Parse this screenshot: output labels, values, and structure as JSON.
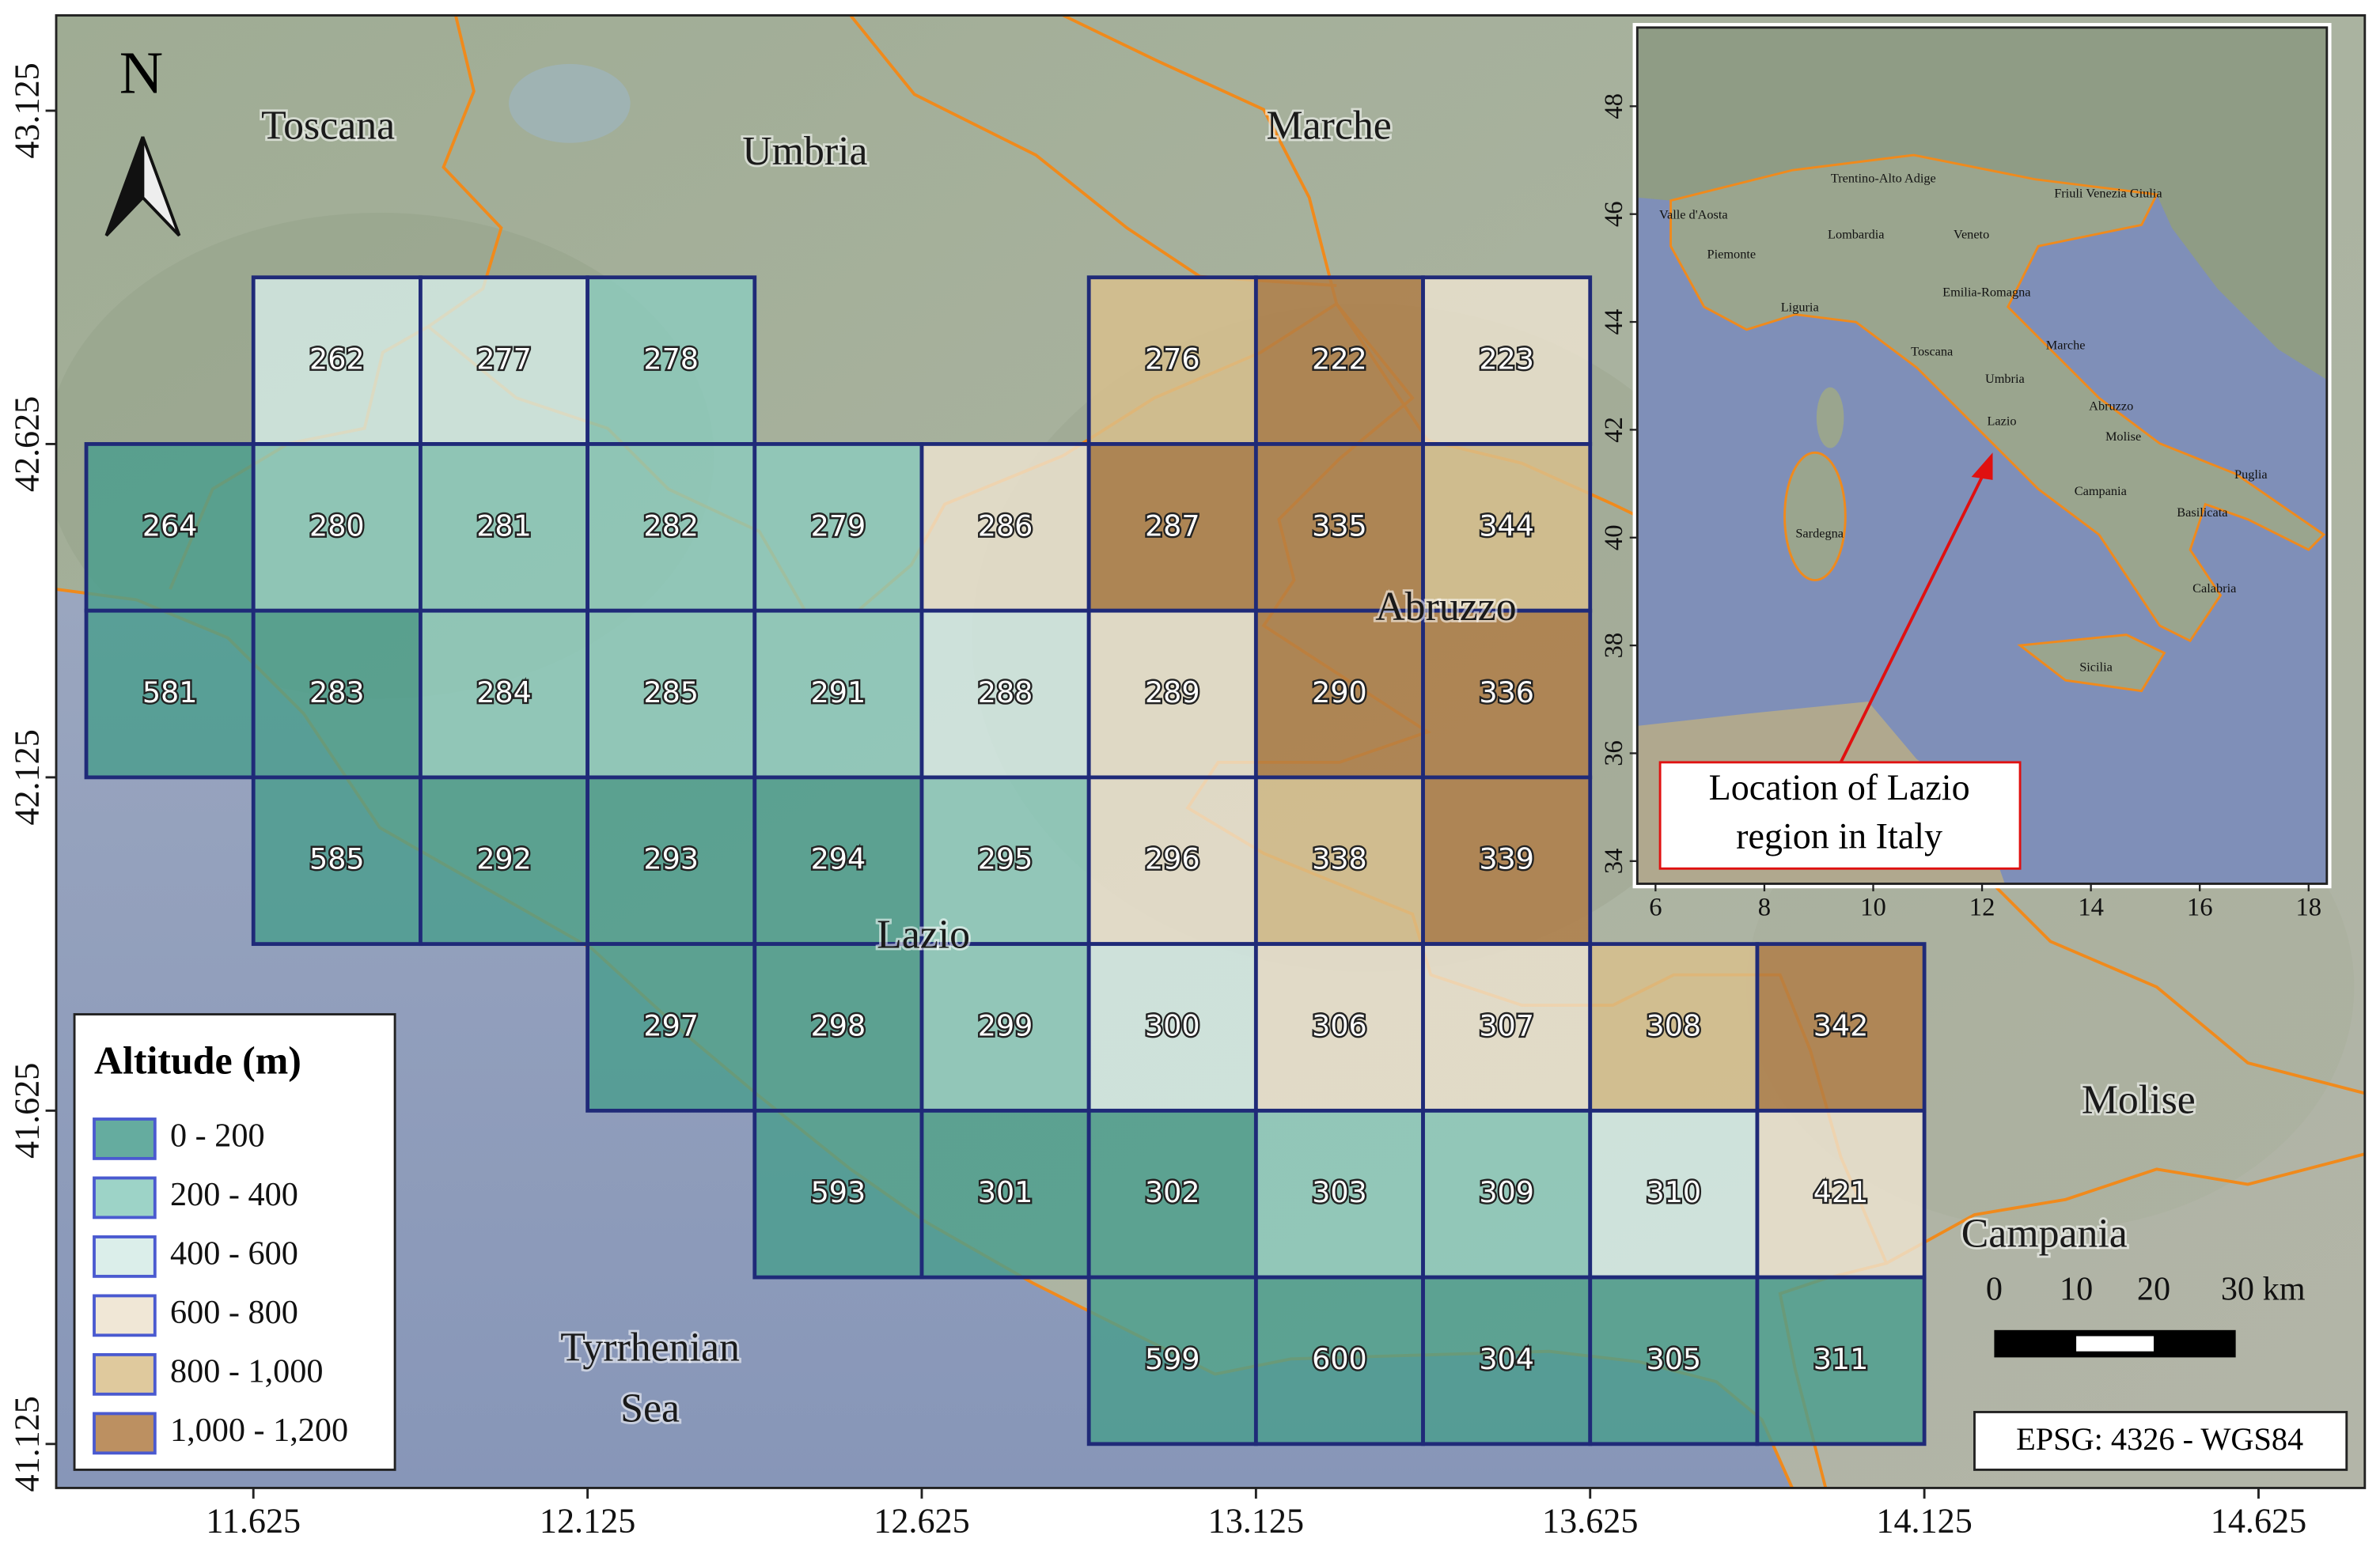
{
  "map": {
    "north": "N",
    "xlim": [
      11.33,
      14.784
    ],
    "ylim": [
      41.059,
      43.268
    ],
    "lon_ticks": [
      11.625,
      12.125,
      12.625,
      13.125,
      13.625,
      14.125,
      14.625
    ],
    "lat_ticks": [
      41.125,
      41.625,
      42.125,
      42.625,
      43.125
    ],
    "regions": [
      "Toscana",
      "Umbria",
      "Marche",
      "Abruzzo",
      "Lazio",
      "Molise",
      "Campania"
    ],
    "sea": [
      "Tyrrhenian",
      "Sea"
    ],
    "cells": [
      {
        "id": 262,
        "lon": [
          11.625,
          11.875
        ],
        "lat": [
          42.875,
          42.625
        ],
        "color": "#d5ebe6"
      },
      {
        "id": 277,
        "lon": [
          11.875,
          12.125
        ],
        "lat": [
          42.875,
          42.625
        ],
        "color": "#d5ebe6"
      },
      {
        "id": 278,
        "lon": [
          12.125,
          12.375
        ],
        "lat": [
          42.875,
          42.625
        ],
        "color": "#8ccbbd"
      },
      {
        "id": 276,
        "lon": [
          12.875,
          13.125
        ],
        "lat": [
          42.875,
          42.625
        ],
        "color": "#d9bf8c"
      },
      {
        "id": 222,
        "lon": [
          13.125,
          13.375
        ],
        "lat": [
          42.875,
          42.625
        ],
        "color": "#b07d45"
      },
      {
        "id": 223,
        "lon": [
          13.375,
          13.625
        ],
        "lat": [
          42.875,
          42.625
        ],
        "color": "#ede3cf"
      },
      {
        "id": 264,
        "lon": [
          11.375,
          11.625
        ],
        "lat": [
          42.625,
          42.375
        ],
        "color": "#4a9e8e"
      },
      {
        "id": 280,
        "lon": [
          11.625,
          11.875
        ],
        "lat": [
          42.625,
          42.375
        ],
        "color": "#8ccbbd"
      },
      {
        "id": 281,
        "lon": [
          11.875,
          12.125
        ],
        "lat": [
          42.625,
          42.375
        ],
        "color": "#8ccbbd"
      },
      {
        "id": 282,
        "lon": [
          12.125,
          12.375
        ],
        "lat": [
          42.625,
          42.375
        ],
        "color": "#8ccbbd"
      },
      {
        "id": 279,
        "lon": [
          12.375,
          12.625
        ],
        "lat": [
          42.625,
          42.375
        ],
        "color": "#8ccbbd"
      },
      {
        "id": 286,
        "lon": [
          12.625,
          12.875
        ],
        "lat": [
          42.625,
          42.375
        ],
        "color": "#ede3cf"
      },
      {
        "id": 287,
        "lon": [
          12.875,
          13.125
        ],
        "lat": [
          42.625,
          42.375
        ],
        "color": "#b07d45"
      },
      {
        "id": 335,
        "lon": [
          13.125,
          13.375
        ],
        "lat": [
          42.625,
          42.375
        ],
        "color": "#b07d45"
      },
      {
        "id": 344,
        "lon": [
          13.375,
          13.625
        ],
        "lat": [
          42.625,
          42.375
        ],
        "color": "#d9bf8c"
      },
      {
        "id": 581,
        "lon": [
          11.375,
          11.625
        ],
        "lat": [
          42.375,
          42.125
        ],
        "color": "#4a9e8e"
      },
      {
        "id": 283,
        "lon": [
          11.625,
          11.875
        ],
        "lat": [
          42.375,
          42.125
        ],
        "color": "#4a9e8e"
      },
      {
        "id": 284,
        "lon": [
          11.875,
          12.125
        ],
        "lat": [
          42.375,
          42.125
        ],
        "color": "#8ccbbd"
      },
      {
        "id": 285,
        "lon": [
          12.125,
          12.375
        ],
        "lat": [
          42.375,
          42.125
        ],
        "color": "#8ccbbd"
      },
      {
        "id": 291,
        "lon": [
          12.375,
          12.625
        ],
        "lat": [
          42.375,
          42.125
        ],
        "color": "#8ccbbd"
      },
      {
        "id": 288,
        "lon": [
          12.625,
          12.875
        ],
        "lat": [
          42.375,
          42.125
        ],
        "color": "#d5ebe6"
      },
      {
        "id": 289,
        "lon": [
          12.875,
          13.125
        ],
        "lat": [
          42.375,
          42.125
        ],
        "color": "#ede3cf"
      },
      {
        "id": 290,
        "lon": [
          13.125,
          13.375
        ],
        "lat": [
          42.375,
          42.125
        ],
        "color": "#b07d45"
      },
      {
        "id": 336,
        "lon": [
          13.375,
          13.625
        ],
        "lat": [
          42.375,
          42.125
        ],
        "color": "#b07d45"
      },
      {
        "id": 585,
        "lon": [
          11.625,
          11.875
        ],
        "lat": [
          42.125,
          41.875
        ],
        "color": "#4a9e8e"
      },
      {
        "id": 292,
        "lon": [
          11.875,
          12.125
        ],
        "lat": [
          42.125,
          41.875
        ],
        "color": "#4a9e8e"
      },
      {
        "id": 293,
        "lon": [
          12.125,
          12.375
        ],
        "lat": [
          42.125,
          41.875
        ],
        "color": "#4a9e8e"
      },
      {
        "id": 294,
        "lon": [
          12.375,
          12.625
        ],
        "lat": [
          42.125,
          41.875
        ],
        "color": "#4a9e8e"
      },
      {
        "id": 295,
        "lon": [
          12.625,
          12.875
        ],
        "lat": [
          42.125,
          41.875
        ],
        "color": "#8ccbbd"
      },
      {
        "id": 296,
        "lon": [
          12.875,
          13.125
        ],
        "lat": [
          42.125,
          41.875
        ],
        "color": "#ede3cf"
      },
      {
        "id": 338,
        "lon": [
          13.125,
          13.375
        ],
        "lat": [
          42.125,
          41.875
        ],
        "color": "#d9bf8c"
      },
      {
        "id": 339,
        "lon": [
          13.375,
          13.625
        ],
        "lat": [
          42.125,
          41.875
        ],
        "color": "#b07d45"
      },
      {
        "id": 297,
        "lon": [
          12.125,
          12.375
        ],
        "lat": [
          41.875,
          41.625
        ],
        "color": "#4a9e8e"
      },
      {
        "id": 298,
        "lon": [
          12.375,
          12.625
        ],
        "lat": [
          41.875,
          41.625
        ],
        "color": "#4a9e8e"
      },
      {
        "id": 299,
        "lon": [
          12.625,
          12.875
        ],
        "lat": [
          41.875,
          41.625
        ],
        "color": "#8ccbbd"
      },
      {
        "id": 300,
        "lon": [
          12.875,
          13.125
        ],
        "lat": [
          41.875,
          41.625
        ],
        "color": "#d5ebe6"
      },
      {
        "id": 306,
        "lon": [
          13.125,
          13.375
        ],
        "lat": [
          41.875,
          41.625
        ],
        "color": "#ede3cf"
      },
      {
        "id": 307,
        "lon": [
          13.375,
          13.625
        ],
        "lat": [
          41.875,
          41.625
        ],
        "color": "#ede3cf"
      },
      {
        "id": 308,
        "lon": [
          13.625,
          13.875
        ],
        "lat": [
          41.875,
          41.625
        ],
        "color": "#d9bf8c"
      },
      {
        "id": 342,
        "lon": [
          13.875,
          14.125
        ],
        "lat": [
          41.875,
          41.625
        ],
        "color": "#b07d45"
      },
      {
        "id": 593,
        "lon": [
          12.375,
          12.625
        ],
        "lat": [
          41.625,
          41.375
        ],
        "color": "#4a9e8e"
      },
      {
        "id": 301,
        "lon": [
          12.625,
          12.875
        ],
        "lat": [
          41.625,
          41.375
        ],
        "color": "#4a9e8e"
      },
      {
        "id": 302,
        "lon": [
          12.875,
          13.125
        ],
        "lat": [
          41.625,
          41.375
        ],
        "color": "#4a9e8e"
      },
      {
        "id": 303,
        "lon": [
          13.125,
          13.375
        ],
        "lat": [
          41.625,
          41.375
        ],
        "color": "#8ccbbd"
      },
      {
        "id": 309,
        "lon": [
          13.375,
          13.625
        ],
        "lat": [
          41.625,
          41.375
        ],
        "color": "#8ccbbd"
      },
      {
        "id": 310,
        "lon": [
          13.625,
          13.875
        ],
        "lat": [
          41.625,
          41.375
        ],
        "color": "#d5ebe6"
      },
      {
        "id": 421,
        "lon": [
          13.875,
          14.125
        ],
        "lat": [
          41.625,
          41.375
        ],
        "color": "#ede3cf"
      },
      {
        "id": 599,
        "lon": [
          12.875,
          13.125
        ],
        "lat": [
          41.375,
          41.125
        ],
        "color": "#4a9e8e"
      },
      {
        "id": 600,
        "lon": [
          13.125,
          13.375
        ],
        "lat": [
          41.375,
          41.125
        ],
        "color": "#4a9e8e"
      },
      {
        "id": 304,
        "lon": [
          13.375,
          13.625
        ],
        "lat": [
          41.375,
          41.125
        ],
        "color": "#4a9e8e"
      },
      {
        "id": 305,
        "lon": [
          13.625,
          13.875
        ],
        "lat": [
          41.375,
          41.125
        ],
        "color": "#4a9e8e"
      },
      {
        "id": 311,
        "lon": [
          13.875,
          14.125
        ],
        "lat": [
          41.375,
          41.125
        ],
        "color": "#4a9e8e"
      }
    ]
  },
  "legend": {
    "title": "Altitude (m)",
    "entries": [
      {
        "label": "0 - 200",
        "color": "#4a9e8e"
      },
      {
        "label": "200 - 400",
        "color": "#8ccbbd"
      },
      {
        "label": "400 - 600",
        "color": "#d5ebe6"
      },
      {
        "label": "600 - 800",
        "color": "#ede3cf"
      },
      {
        "label": "800 - 1,000",
        "color": "#d9bf8c"
      },
      {
        "label": "1,000 - 1,200",
        "color": "#b07d45"
      }
    ]
  },
  "inset": {
    "xlim": [
      5.665,
      18.335
    ],
    "ylim": [
      33.58,
      49.46
    ],
    "xticks": [
      6,
      8,
      10,
      12,
      14,
      16,
      18
    ],
    "yticks": [
      34,
      36,
      38,
      40,
      42,
      44,
      46,
      48
    ],
    "labels": [
      "Valle d'Aosta",
      "Trentino-Alto Adige",
      "Friuli Venezia Giulia",
      "Piemonte",
      "Lombardia",
      "Veneto",
      "Emilia-Romagna",
      "Liguria",
      "Toscana",
      "Marche",
      "Umbria",
      "Lazio",
      "Abruzzo",
      "Molise",
      "Puglia",
      "Campania",
      "Basilicata",
      "Sardegna",
      "Calabria",
      "Sicilia"
    ],
    "callout": [
      "Location of Lazio",
      "region in Italy"
    ]
  },
  "scale_bar": {
    "labels": [
      "0",
      "10",
      "20",
      "30 km"
    ]
  },
  "crs": "EPSG: 4326 - WGS84"
}
